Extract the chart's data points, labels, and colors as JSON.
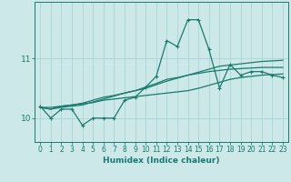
{
  "title": "",
  "xlabel": "Humidex (Indice chaleur)",
  "ylabel": "",
  "background_color": "#cce8e8",
  "line_color": "#1a7a6e",
  "grid_color": "#aad4d4",
  "x_values": [
    0,
    1,
    2,
    3,
    4,
    5,
    6,
    7,
    8,
    9,
    10,
    11,
    12,
    13,
    14,
    15,
    16,
    17,
    18,
    19,
    20,
    21,
    22,
    23
  ],
  "line1": [
    10.2,
    10.0,
    10.15,
    10.15,
    9.88,
    10.0,
    10.0,
    10.0,
    10.3,
    10.35,
    10.52,
    10.7,
    11.3,
    11.2,
    11.65,
    11.65,
    11.15,
    10.5,
    10.9,
    10.72,
    10.78,
    10.78,
    10.72,
    10.68
  ],
  "line2": [
    10.18,
    10.15,
    10.18,
    10.2,
    10.22,
    10.27,
    10.32,
    10.37,
    10.42,
    10.46,
    10.5,
    10.56,
    10.62,
    10.67,
    10.72,
    10.77,
    10.82,
    10.87,
    10.89,
    10.91,
    10.93,
    10.95,
    10.96,
    10.97
  ],
  "line3": [
    10.18,
    10.15,
    10.2,
    10.22,
    10.25,
    10.3,
    10.35,
    10.38,
    10.42,
    10.46,
    10.52,
    10.58,
    10.65,
    10.68,
    10.72,
    10.75,
    10.78,
    10.8,
    10.82,
    10.83,
    10.84,
    10.85,
    10.85,
    10.85
  ],
  "line4": [
    10.18,
    10.18,
    10.2,
    10.22,
    10.24,
    10.26,
    10.3,
    10.32,
    10.34,
    10.36,
    10.38,
    10.4,
    10.42,
    10.44,
    10.46,
    10.5,
    10.55,
    10.6,
    10.65,
    10.68,
    10.7,
    10.72,
    10.73,
    10.74
  ],
  "yticks": [
    10,
    11
  ],
  "ylim": [
    9.6,
    11.95
  ],
  "xlim": [
    -0.5,
    23.5
  ],
  "tick_fontsize": 5.5,
  "xlabel_fontsize": 6.5
}
